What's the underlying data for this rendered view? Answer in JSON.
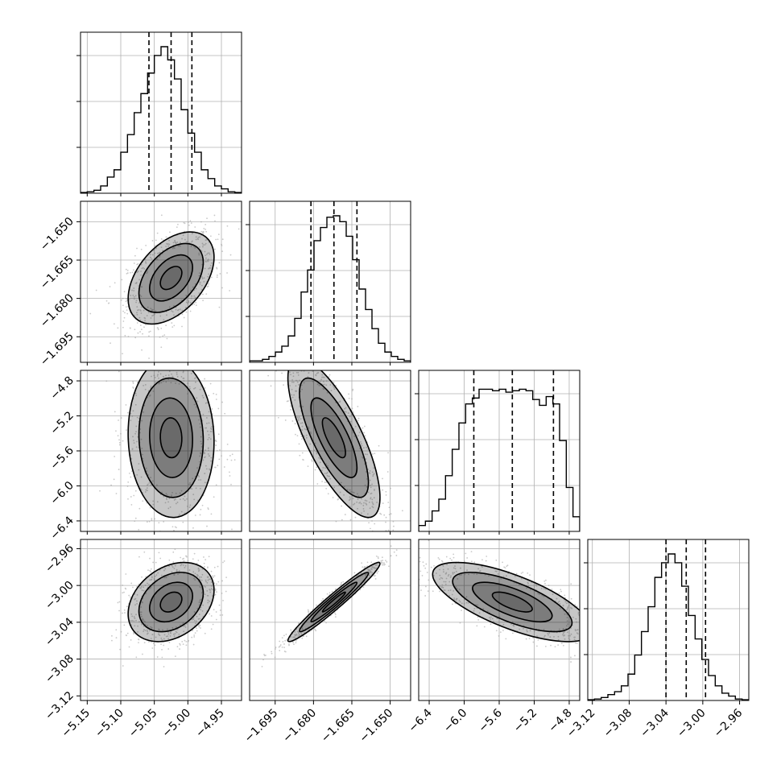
{
  "chart_data": {
    "type": "corner",
    "title": "",
    "grid": true,
    "parameters": [
      {
        "name": "",
        "median": -5.025,
        "quantiles": [
          -5.058,
          -5.025,
          -4.994
        ],
        "range": [
          -5.16,
          -4.92
        ],
        "ticks": [
          "−5.15",
          "−5.10",
          "−5.05",
          "−5.00",
          "−4.95"
        ],
        "tick_values": [
          -5.15,
          -5.1,
          -5.05,
          -5.0,
          -4.95
        ],
        "hist": [
          0.005,
          0.01,
          0.02,
          0.05,
          0.11,
          0.16,
          0.28,
          0.4,
          0.55,
          0.68,
          0.82,
          0.94,
          1.0,
          0.91,
          0.78,
          0.57,
          0.41,
          0.28,
          0.16,
          0.1,
          0.05,
          0.03,
          0.01,
          0.005
        ]
      },
      {
        "name": "",
        "median": -1.672,
        "quantiles": [
          -1.681,
          -1.672,
          -1.663
        ],
        "range": [
          -1.705,
          -1.642
        ],
        "ticks": [
          "−1.695",
          "−1.680",
          "−1.665",
          "−1.650"
        ],
        "tick_values": [
          -1.695,
          -1.68,
          -1.665,
          -1.65
        ],
        "hist": [
          0.01,
          0.01,
          0.02,
          0.04,
          0.07,
          0.11,
          0.18,
          0.3,
          0.48,
          0.63,
          0.83,
          0.92,
          0.99,
          1.0,
          0.96,
          0.86,
          0.7,
          0.5,
          0.36,
          0.23,
          0.13,
          0.07,
          0.04,
          0.02,
          0.01
        ]
      },
      {
        "name": "",
        "median": -5.45,
        "quantiles": [
          -5.89,
          -5.45,
          -4.98
        ],
        "range": [
          -6.52,
          -4.68
        ],
        "ticks": [
          "−6.4",
          "−6.0",
          "−5.6",
          "−5.2",
          "−4.8"
        ],
        "tick_values": [
          -6.4,
          -6.0,
          -5.6,
          -5.2,
          -4.8
        ],
        "hist": [
          0.04,
          0.07,
          0.14,
          0.22,
          0.38,
          0.56,
          0.74,
          0.87,
          0.91,
          0.97,
          0.97,
          0.96,
          0.97,
          0.95,
          0.96,
          0.97,
          0.96,
          0.9,
          0.86,
          0.92,
          0.87,
          0.62,
          0.3,
          0.1
        ]
      },
      {
        "name": "",
        "median": -3.018,
        "quantiles": [
          -3.04,
          -3.018,
          -2.997
        ],
        "range": [
          -3.125,
          -2.95
        ],
        "ticks": [
          "−3.12",
          "−3.08",
          "−3.04",
          "−3.00",
          "−2.96"
        ],
        "tick_values": [
          -3.12,
          -3.08,
          -3.04,
          -3.0,
          -2.96
        ],
        "hist": [
          0.005,
          0.01,
          0.02,
          0.04,
          0.06,
          0.1,
          0.18,
          0.31,
          0.47,
          0.64,
          0.84,
          0.94,
          1.0,
          0.94,
          0.78,
          0.58,
          0.42,
          0.28,
          0.17,
          0.1,
          0.05,
          0.03,
          0.01,
          0.005
        ]
      }
    ],
    "correlations": [
      {
        "x": 0,
        "y": 1,
        "rho": 0.45
      },
      {
        "x": 0,
        "y": 2,
        "rho": -0.05
      },
      {
        "x": 1,
        "y": 2,
        "rho": -0.75
      },
      {
        "x": 0,
        "y": 3,
        "rho": 0.3
      },
      {
        "x": 1,
        "y": 3,
        "rho": 0.97
      },
      {
        "x": 2,
        "y": 3,
        "rho": -0.7
      }
    ],
    "styles": {
      "line_color": "#000000",
      "grid_color": "#b0b0b0",
      "sample_color": "#9e9e9e"
    }
  }
}
